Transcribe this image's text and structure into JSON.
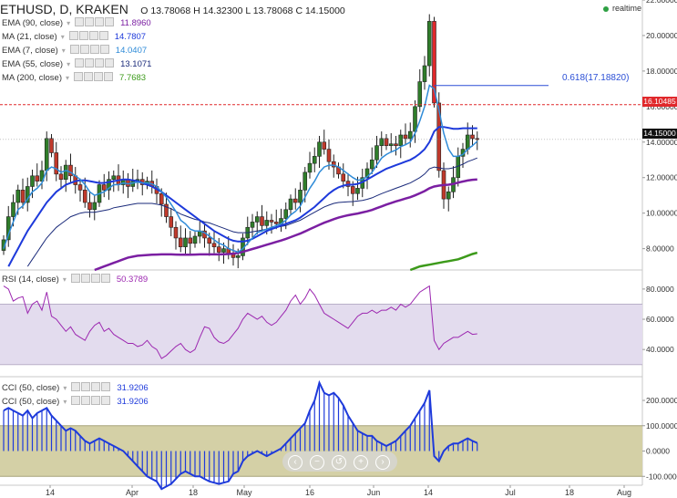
{
  "header": {
    "symbol": "ETHUSD, D, KRAKEN",
    "open_label": "O",
    "open": "13.78068",
    "high_label": "H",
    "high": "14.32300",
    "low_label": "L",
    "low": "13.78068",
    "close_label": "C",
    "close": "14.15000",
    "realtime": "realtime",
    "realtime_color": "#2ea043"
  },
  "legend_icons": [
    "settings-icon",
    "visibility-icon",
    "add-icon",
    "close-icon"
  ],
  "indicators": [
    {
      "label": "EMA (90, close)",
      "value": "11.8960",
      "color": "#7b1fa2"
    },
    {
      "label": "MA (21, close)",
      "value": "14.7807",
      "color": "#1e3adb"
    },
    {
      "label": "EMA (7, close)",
      "value": "14.0407",
      "color": "#2e8bd8"
    },
    {
      "label": "EMA (55, close)",
      "value": "13.1071",
      "color": "#1a2a7a"
    },
    {
      "label": "MA (200, close)",
      "value": "7.7683",
      "color": "#3c9a1a"
    }
  ],
  "rsi": {
    "label": "RSI (14, close)",
    "value": "50.3789",
    "color": "#9c27b0"
  },
  "cci": [
    {
      "label": "CCI (50, close)",
      "value": "31.9206",
      "color": "#1e3adb"
    },
    {
      "label": "CCI (50, close)",
      "value": "31.9206",
      "color": "#1e3adb"
    }
  ],
  "fib": {
    "label": "0.618(17.18820)",
    "color": "#2b4fd6"
  },
  "price_tags": {
    "resistance": "16.10485",
    "resistance_color": "#e0282b",
    "last": "14.15000",
    "last_color": "#111111"
  },
  "nav_buttons": [
    "‹",
    "−",
    "↺",
    "+",
    "›"
  ],
  "chart_data": {
    "type": "candlestick",
    "price_axis": {
      "min": 6.8,
      "max": 22.0,
      "ticks": [
        "22.00000",
        "20.00000",
        "18.00000",
        "16.00000",
        "14.00000",
        "12.00000",
        "10.00000",
        "8.00000"
      ],
      "tick_values": [
        22,
        20,
        18,
        16,
        14,
        12,
        10,
        8
      ]
    },
    "rsi_axis": {
      "ticks": [
        "80.0000",
        "60.0000",
        "40.0000"
      ],
      "tick_values": [
        80,
        60,
        40
      ],
      "band": [
        30,
        70
      ]
    },
    "cci_axis": {
      "ticks": [
        "200.0000",
        "100.0000",
        "0.0000",
        "-100.0000"
      ],
      "tick_values": [
        200,
        100,
        0,
        -100
      ],
      "band": [
        -100,
        100
      ]
    },
    "x_ticks": [
      {
        "label": "14",
        "day": 14
      },
      {
        "label": "Apr",
        "day": 32
      },
      {
        "label": "18",
        "day": 49
      },
      {
        "label": "May",
        "day": 62
      },
      {
        "label": "16",
        "day": 77
      },
      {
        "label": "Jun",
        "day": 93
      },
      {
        "label": "14",
        "day": 106
      },
      {
        "label": "Jul",
        "day": 123
      },
      {
        "label": "18",
        "day": 140
      },
      {
        "label": "Aug",
        "day": 154
      }
    ],
    "close": [
      8.5,
      9.8,
      10.6,
      11.3,
      10.6,
      11.5,
      12.1,
      11.8,
      12.4,
      14.2,
      13.4,
      12.2,
      11.9,
      12.7,
      12.1,
      11.6,
      11.3,
      10.6,
      10.2,
      10.6,
      11.6,
      11.3,
      11.9,
      12.1,
      11.6,
      11.9,
      11.5,
      11.8,
      11.9,
      11.6,
      11.8,
      11.5,
      11.1,
      10.5,
      9.8,
      9.2,
      8.6,
      8.1,
      8.6,
      8.3,
      8.7,
      9.0,
      8.6,
      8.3,
      8.1,
      7.8,
      8.0,
      7.7,
      7.5,
      7.6,
      8.6,
      9.2,
      9.5,
      9.8,
      9.3,
      9.6,
      9.5,
      9.4,
      9.7,
      10.2,
      10.8,
      10.6,
      11.3,
      12.3,
      12.8,
      13.2,
      14.0,
      13.6,
      12.9,
      12.6,
      12.2,
      11.8,
      11.5,
      11.1,
      11.4,
      12.0,
      12.5,
      13.0,
      13.8,
      14.2,
      13.8,
      13.9,
      13.8,
      14.4,
      14.2,
      14.6,
      16.0,
      17.4,
      18.3,
      20.8,
      16.2,
      12.4,
      10.8,
      11.2,
      12.0,
      13.2,
      13.6,
      14.4,
      14.2,
      14.15
    ],
    "ema_90": [
      4.0,
      4.2,
      4.4,
      4.6,
      4.8,
      5.0,
      5.2,
      5.4,
      5.6,
      5.8,
      5.9,
      6.0,
      6.1,
      6.2,
      6.3,
      6.4,
      6.5,
      6.6,
      6.7,
      6.8,
      6.9,
      7.0,
      7.1,
      7.2,
      7.3,
      7.4,
      7.5,
      7.55,
      7.6,
      7.62,
      7.64,
      7.66,
      7.67,
      7.68,
      7.68,
      7.68,
      7.67,
      7.66,
      7.66,
      7.66,
      7.67,
      7.68,
      7.68,
      7.68,
      7.68,
      7.68,
      7.69,
      7.7,
      7.72,
      7.76,
      7.82,
      7.9,
      7.98,
      8.06,
      8.14,
      8.22,
      8.3,
      8.38,
      8.46,
      8.55,
      8.65,
      8.75,
      8.85,
      8.97,
      9.1,
      9.22,
      9.34,
      9.46,
      9.56,
      9.66,
      9.75,
      9.82,
      9.88,
      9.93,
      9.98,
      10.04,
      10.1,
      10.18,
      10.28,
      10.38,
      10.48,
      10.57,
      10.66,
      10.74,
      10.82,
      10.9,
      11.0,
      11.12,
      11.24,
      11.4,
      11.5,
      11.55,
      11.58,
      11.6,
      11.65,
      11.72,
      11.78,
      11.84,
      11.88,
      11.896
    ],
    "ma_21": [
      6.5,
      7.0,
      7.5,
      8.0,
      8.5,
      9.0,
      9.4,
      9.8,
      10.2,
      10.6,
      10.9,
      11.2,
      11.4,
      11.6,
      11.7,
      11.8,
      11.85,
      11.85,
      11.8,
      11.75,
      11.7,
      11.7,
      11.75,
      11.8,
      11.85,
      11.9,
      11.9,
      11.85,
      11.8,
      11.7,
      11.6,
      11.5,
      11.35,
      11.2,
      11.0,
      10.8,
      10.6,
      10.4,
      10.2,
      10.0,
      9.8,
      9.6,
      9.4,
      9.2,
      9.0,
      8.85,
      8.7,
      8.55,
      8.45,
      8.4,
      8.4,
      8.45,
      8.55,
      8.7,
      8.85,
      9.0,
      9.1,
      9.2,
      9.3,
      9.4,
      9.5,
      9.6,
      9.75,
      9.95,
      10.15,
      10.35,
      10.6,
      10.85,
      11.1,
      11.3,
      11.45,
      11.55,
      11.6,
      11.6,
      11.65,
      11.75,
      11.9,
      12.05,
      12.2,
      12.35,
      12.5,
      12.6,
      12.7,
      12.8,
      12.9,
      13.0,
      13.15,
      13.35,
      13.6,
      14.0,
      14.6,
      14.85,
      14.85,
      14.8,
      14.75,
      14.75,
      14.78,
      14.78,
      14.78,
      14.7807
    ],
    "ema_7": [
      8.0,
      8.8,
      9.5,
      10.2,
      10.4,
      10.8,
      11.2,
      11.4,
      11.7,
      12.4,
      12.6,
      12.5,
      12.3,
      12.4,
      12.3,
      12.1,
      11.9,
      11.6,
      11.2,
      11.0,
      11.1,
      11.2,
      11.4,
      11.6,
      11.6,
      11.7,
      11.65,
      11.7,
      11.75,
      11.7,
      11.7,
      11.65,
      11.5,
      11.2,
      10.9,
      10.5,
      10.1,
      9.6,
      9.4,
      9.1,
      9.0,
      9.0,
      8.9,
      8.7,
      8.5,
      8.3,
      8.2,
      8.0,
      7.9,
      7.8,
      8.0,
      8.3,
      8.6,
      8.9,
      9.0,
      9.1,
      9.2,
      9.3,
      9.4,
      9.6,
      9.9,
      10.1,
      10.4,
      10.9,
      11.4,
      11.8,
      12.3,
      12.6,
      12.7,
      12.7,
      12.6,
      12.4,
      12.2,
      12.0,
      11.85,
      11.9,
      12.05,
      12.3,
      12.7,
      13.1,
      13.3,
      13.45,
      13.55,
      13.75,
      13.85,
      14.0,
      14.5,
      15.2,
      16.0,
      17.2,
      17.0,
      15.8,
      14.5,
      13.6,
      13.2,
      13.2,
      13.3,
      13.6,
      13.8,
      14.04
    ],
    "ema_55": [
      4.5,
      5.0,
      5.5,
      6.0,
      6.5,
      7.0,
      7.4,
      7.8,
      8.2,
      8.6,
      8.9,
      9.2,
      9.4,
      9.6,
      9.8,
      9.9,
      10.0,
      10.05,
      10.05,
      10.05,
      10.1,
      10.15,
      10.2,
      10.3,
      10.35,
      10.4,
      10.45,
      10.5,
      10.55,
      10.55,
      10.55,
      10.55,
      10.5,
      10.45,
      10.35,
      10.25,
      10.1,
      9.95,
      9.85,
      9.75,
      9.65,
      9.6,
      9.5,
      9.45,
      9.35,
      9.25,
      9.15,
      9.05,
      8.95,
      8.9,
      8.9,
      8.9,
      8.95,
      9.0,
      9.05,
      9.1,
      9.15,
      9.2,
      9.25,
      9.3,
      9.4,
      9.5,
      9.6,
      9.75,
      9.9,
      10.05,
      10.2,
      10.35,
      10.45,
      10.55,
      10.6,
      10.62,
      10.64,
      10.65,
      10.68,
      10.72,
      10.78,
      10.86,
      10.98,
      11.1,
      11.2,
      11.3,
      11.4,
      11.5,
      11.6,
      11.7,
      11.85,
      12.0,
      12.2,
      12.5,
      12.6,
      12.55,
      12.5,
      12.5,
      12.55,
      12.65,
      12.75,
      12.9,
      13.0,
      13.107
    ],
    "ma_200": [
      2.0,
      2.05,
      2.1,
      2.15,
      2.2,
      2.25,
      2.3,
      2.35,
      2.4,
      2.45,
      2.5,
      2.55,
      2.6,
      2.65,
      2.7,
      2.75,
      2.8,
      2.85,
      2.9,
      2.95,
      3.0,
      3.05,
      3.1,
      3.15,
      3.2,
      3.25,
      3.3,
      3.35,
      3.4,
      3.45,
      3.5,
      3.55,
      3.6,
      3.65,
      3.7,
      3.75,
      3.8,
      3.85,
      3.9,
      3.95,
      4.0,
      4.05,
      4.1,
      4.15,
      4.2,
      4.25,
      4.3,
      4.35,
      4.4,
      4.45,
      4.5,
      4.55,
      4.6,
      4.65,
      4.7,
      4.75,
      4.8,
      4.85,
      4.9,
      4.95,
      5.0,
      5.05,
      5.1,
      5.15,
      5.2,
      5.25,
      5.3,
      5.35,
      5.4,
      5.45,
      5.5,
      5.55,
      5.6,
      5.65,
      5.7,
      5.8,
      5.9,
      6.0,
      6.1,
      6.2,
      6.3,
      6.4,
      6.5,
      6.6,
      6.7,
      6.8,
      6.9,
      7.0,
      7.05,
      7.1,
      7.15,
      7.2,
      7.25,
      7.3,
      7.35,
      7.4,
      7.5,
      7.6,
      7.7,
      7.768
    ],
    "fib_level": 17.1882,
    "resistance_level": 16.10485,
    "rsi_values": [
      82,
      80,
      72,
      74,
      75,
      64,
      70,
      72,
      66,
      78,
      62,
      60,
      56,
      52,
      55,
      50,
      48,
      46,
      52,
      56,
      58,
      52,
      54,
      50,
      48,
      46,
      44,
      44,
      42,
      43,
      46,
      42,
      40,
      34,
      36,
      39,
      42,
      44,
      40,
      38,
      40,
      48,
      55,
      54,
      48,
      45,
      44,
      46,
      50,
      54,
      60,
      64,
      62,
      60,
      62,
      58,
      56,
      58,
      62,
      66,
      72,
      76,
      70,
      74,
      80,
      76,
      70,
      64,
      62,
      60,
      58,
      56,
      54,
      58,
      62,
      64,
      64,
      66,
      64,
      66,
      66,
      68,
      66,
      70,
      68,
      70,
      74,
      78,
      80,
      82,
      46,
      40,
      44,
      46,
      48,
      48,
      50,
      52,
      50,
      50.38
    ],
    "cci_values": [
      160,
      170,
      160,
      150,
      140,
      160,
      130,
      150,
      160,
      170,
      140,
      120,
      100,
      80,
      90,
      80,
      60,
      40,
      30,
      40,
      50,
      40,
      30,
      20,
      10,
      0,
      -20,
      -40,
      -60,
      -80,
      -100,
      -110,
      -120,
      -150,
      -140,
      -130,
      -110,
      -90,
      -80,
      -90,
      -100,
      -100,
      -110,
      -120,
      -125,
      -130,
      -125,
      -120,
      -90,
      -80,
      -40,
      -20,
      -10,
      0,
      -10,
      -20,
      -10,
      0,
      10,
      30,
      50,
      70,
      90,
      110,
      160,
      200,
      270,
      230,
      220,
      230,
      210,
      180,
      140,
      110,
      80,
      70,
      60,
      60,
      40,
      30,
      20,
      30,
      40,
      60,
      80,
      100,
      130,
      160,
      190,
      240,
      -20,
      -40,
      0,
      20,
      30,
      30,
      40,
      50,
      40,
      31.92
    ],
    "series": [
      {
        "name": "EMA (90, close)"
      },
      {
        "name": "MA (21, close)"
      },
      {
        "name": "EMA (7, close)"
      },
      {
        "name": "EMA (55, close)"
      },
      {
        "name": "MA (200, close)"
      },
      {
        "name": "RSI (14, close)"
      },
      {
        "name": "CCI (50, close)"
      }
    ]
  }
}
